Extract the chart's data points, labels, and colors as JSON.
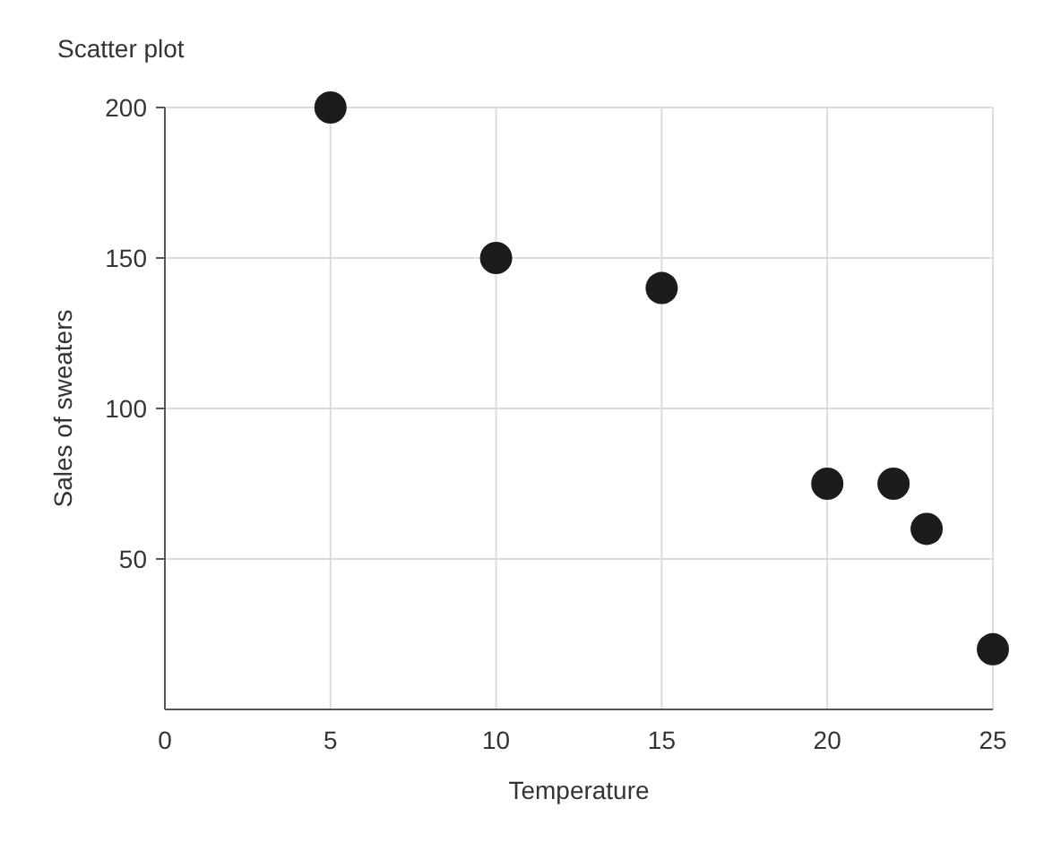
{
  "chart_data": {
    "type": "scatter",
    "title": "Scatter plot",
    "xlabel": "Temperature",
    "ylabel": "Sales of sweaters",
    "x": [
      5,
      10,
      15,
      20,
      22,
      23,
      25
    ],
    "series": [
      {
        "color": "#1c1c1c",
        "values": [
          200,
          150,
          140,
          75,
          75,
          60,
          20
        ]
      }
    ],
    "xlim": [
      0,
      25
    ],
    "xticks": [
      0,
      5,
      10,
      15,
      20,
      25
    ],
    "ylim": [
      0,
      200
    ],
    "yticks": [
      50,
      100,
      150,
      200
    ],
    "grid": true,
    "marker": "circle"
  }
}
